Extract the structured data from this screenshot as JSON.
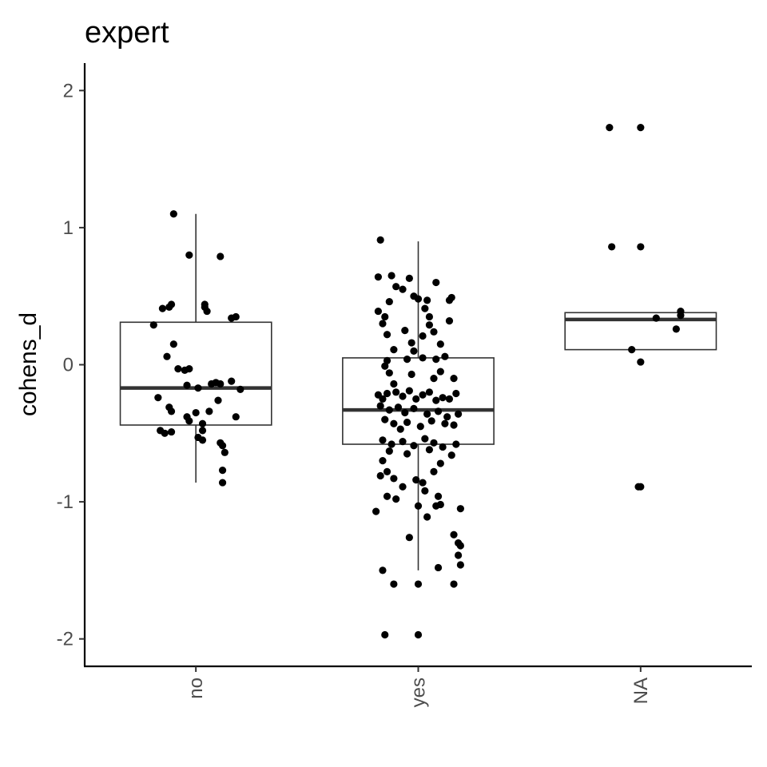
{
  "chart_data": {
    "type": "boxplot",
    "title": "expert",
    "xlabel": "",
    "ylabel": "cohens_d",
    "ylim": [
      -2.2,
      2.2
    ],
    "y_ticks": [
      -2,
      -1,
      0,
      1,
      2
    ],
    "y_tick_labels": [
      "-2",
      "-1",
      "0",
      "1",
      "2"
    ],
    "grid": false,
    "legend": "none",
    "point_color": "#000000",
    "box_color": "#333333",
    "categories": [
      "no",
      "yes",
      "NA"
    ],
    "boxes": [
      {
        "category": "no",
        "whisker_low": -0.86,
        "q1": -0.44,
        "median": -0.17,
        "q3": 0.31,
        "whisker_high": 1.1
      },
      {
        "category": "yes",
        "whisker_low": -1.5,
        "q1": -0.58,
        "median": -0.33,
        "q3": 0.05,
        "whisker_high": 0.9
      },
      {
        "category": "NA",
        "whisker_low": 0.11,
        "q1": 0.11,
        "median": 0.33,
        "q3": 0.38,
        "whisker_high": 0.38
      }
    ],
    "points": {
      "no": [
        {
          "jitter": -0.1,
          "y": 1.1
        },
        {
          "jitter": -0.03,
          "y": 0.8
        },
        {
          "jitter": 0.11,
          "y": 0.79
        },
        {
          "jitter": 0.04,
          "y": 0.44
        },
        {
          "jitter": 0.04,
          "y": 0.42
        },
        {
          "jitter": 0.05,
          "y": 0.39
        },
        {
          "jitter": -0.15,
          "y": 0.41
        },
        {
          "jitter": -0.12,
          "y": 0.42
        },
        {
          "jitter": -0.11,
          "y": 0.44
        },
        {
          "jitter": 0.16,
          "y": 0.34
        },
        {
          "jitter": 0.18,
          "y": 0.35
        },
        {
          "jitter": -0.19,
          "y": 0.29
        },
        {
          "jitter": -0.1,
          "y": 0.15
        },
        {
          "jitter": -0.13,
          "y": 0.06
        },
        {
          "jitter": -0.08,
          "y": -0.03
        },
        {
          "jitter": -0.03,
          "y": -0.03
        },
        {
          "jitter": -0.05,
          "y": -0.04
        },
        {
          "jitter": 0.07,
          "y": -0.14
        },
        {
          "jitter": 0.09,
          "y": -0.13
        },
        {
          "jitter": 0.11,
          "y": -0.14
        },
        {
          "jitter": 0.16,
          "y": -0.12
        },
        {
          "jitter": 0.2,
          "y": -0.18
        },
        {
          "jitter": -0.04,
          "y": -0.15
        },
        {
          "jitter": 0.01,
          "y": -0.17
        },
        {
          "jitter": -0.17,
          "y": -0.24
        },
        {
          "jitter": 0.1,
          "y": -0.26
        },
        {
          "jitter": -0.12,
          "y": -0.31
        },
        {
          "jitter": -0.11,
          "y": -0.34
        },
        {
          "jitter": -0.04,
          "y": -0.38
        },
        {
          "jitter": 0.0,
          "y": -0.35
        },
        {
          "jitter": 0.06,
          "y": -0.34
        },
        {
          "jitter": 0.18,
          "y": -0.38
        },
        {
          "jitter": -0.03,
          "y": -0.41
        },
        {
          "jitter": 0.03,
          "y": -0.43
        },
        {
          "jitter": -0.16,
          "y": -0.48
        },
        {
          "jitter": -0.14,
          "y": -0.5
        },
        {
          "jitter": -0.11,
          "y": -0.49
        },
        {
          "jitter": 0.03,
          "y": -0.48
        },
        {
          "jitter": 0.01,
          "y": -0.53
        },
        {
          "jitter": 0.03,
          "y": -0.55
        },
        {
          "jitter": 0.11,
          "y": -0.57
        },
        {
          "jitter": 0.12,
          "y": -0.59
        },
        {
          "jitter": 0.13,
          "y": -0.64
        },
        {
          "jitter": 0.12,
          "y": -0.77
        },
        {
          "jitter": 0.12,
          "y": -0.86
        }
      ],
      "yes": [
        {
          "jitter": -0.17,
          "y": 0.91
        },
        {
          "jitter": -0.18,
          "y": 0.64
        },
        {
          "jitter": -0.12,
          "y": 0.65
        },
        {
          "jitter": -0.1,
          "y": 0.57
        },
        {
          "jitter": -0.07,
          "y": 0.55
        },
        {
          "jitter": -0.04,
          "y": 0.63
        },
        {
          "jitter": -0.02,
          "y": 0.5
        },
        {
          "jitter": 0.08,
          "y": 0.6
        },
        {
          "jitter": 0.15,
          "y": 0.49
        },
        {
          "jitter": 0.14,
          "y": 0.47
        },
        {
          "jitter": -0.13,
          "y": 0.46
        },
        {
          "jitter": 0.0,
          "y": 0.48
        },
        {
          "jitter": 0.04,
          "y": 0.47
        },
        {
          "jitter": -0.18,
          "y": 0.39
        },
        {
          "jitter": -0.15,
          "y": 0.35
        },
        {
          "jitter": -0.16,
          "y": 0.3
        },
        {
          "jitter": -0.14,
          "y": 0.22
        },
        {
          "jitter": -0.06,
          "y": 0.25
        },
        {
          "jitter": 0.03,
          "y": 0.41
        },
        {
          "jitter": 0.05,
          "y": 0.35
        },
        {
          "jitter": 0.05,
          "y": 0.29
        },
        {
          "jitter": 0.14,
          "y": 0.32
        },
        {
          "jitter": 0.07,
          "y": 0.24
        },
        {
          "jitter": 0.02,
          "y": 0.21
        },
        {
          "jitter": -0.03,
          "y": 0.16
        },
        {
          "jitter": -0.11,
          "y": 0.11
        },
        {
          "jitter": -0.02,
          "y": 0.1
        },
        {
          "jitter": 0.1,
          "y": 0.15
        },
        {
          "jitter": 0.12,
          "y": 0.06
        },
        {
          "jitter": -0.14,
          "y": 0.03
        },
        {
          "jitter": -0.05,
          "y": 0.04
        },
        {
          "jitter": 0.02,
          "y": 0.05
        },
        {
          "jitter": 0.08,
          "y": 0.04
        },
        {
          "jitter": -0.15,
          "y": -0.01
        },
        {
          "jitter": -0.13,
          "y": -0.06
        },
        {
          "jitter": -0.03,
          "y": -0.07
        },
        {
          "jitter": 0.1,
          "y": -0.05
        },
        {
          "jitter": 0.07,
          "y": -0.1
        },
        {
          "jitter": 0.16,
          "y": -0.1
        },
        {
          "jitter": -0.11,
          "y": -0.14
        },
        {
          "jitter": -0.18,
          "y": -0.22
        },
        {
          "jitter": -0.16,
          "y": -0.25
        },
        {
          "jitter": -0.14,
          "y": -0.21
        },
        {
          "jitter": -0.1,
          "y": -0.2
        },
        {
          "jitter": -0.07,
          "y": -0.23
        },
        {
          "jitter": -0.04,
          "y": -0.19
        },
        {
          "jitter": -0.01,
          "y": -0.25
        },
        {
          "jitter": 0.02,
          "y": -0.22
        },
        {
          "jitter": 0.05,
          "y": -0.2
        },
        {
          "jitter": 0.08,
          "y": -0.26
        },
        {
          "jitter": 0.11,
          "y": -0.24
        },
        {
          "jitter": 0.14,
          "y": -0.25
        },
        {
          "jitter": 0.17,
          "y": -0.21
        },
        {
          "jitter": -0.17,
          "y": -0.3
        },
        {
          "jitter": -0.13,
          "y": -0.33
        },
        {
          "jitter": -0.09,
          "y": -0.31
        },
        {
          "jitter": -0.06,
          "y": -0.35
        },
        {
          "jitter": -0.02,
          "y": -0.32
        },
        {
          "jitter": 0.04,
          "y": -0.36
        },
        {
          "jitter": 0.09,
          "y": -0.34
        },
        {
          "jitter": 0.13,
          "y": -0.38
        },
        {
          "jitter": 0.18,
          "y": -0.36
        },
        {
          "jitter": -0.15,
          "y": -0.4
        },
        {
          "jitter": -0.11,
          "y": -0.43
        },
        {
          "jitter": -0.05,
          "y": -0.42
        },
        {
          "jitter": 0.01,
          "y": -0.45
        },
        {
          "jitter": 0.06,
          "y": -0.41
        },
        {
          "jitter": 0.12,
          "y": -0.43
        },
        {
          "jitter": 0.16,
          "y": -0.44
        },
        {
          "jitter": -0.08,
          "y": -0.47
        },
        {
          "jitter": -0.16,
          "y": -0.55
        },
        {
          "jitter": -0.12,
          "y": -0.58
        },
        {
          "jitter": -0.07,
          "y": -0.56
        },
        {
          "jitter": -0.02,
          "y": -0.59
        },
        {
          "jitter": 0.03,
          "y": -0.54
        },
        {
          "jitter": 0.07,
          "y": -0.57
        },
        {
          "jitter": 0.11,
          "y": -0.6
        },
        {
          "jitter": 0.17,
          "y": -0.58
        },
        {
          "jitter": -0.13,
          "y": -0.63
        },
        {
          "jitter": -0.05,
          "y": -0.65
        },
        {
          "jitter": 0.05,
          "y": -0.62
        },
        {
          "jitter": 0.15,
          "y": -0.66
        },
        {
          "jitter": -0.16,
          "y": -0.7
        },
        {
          "jitter": 0.1,
          "y": -0.72
        },
        {
          "jitter": -0.14,
          "y": -0.78
        },
        {
          "jitter": -0.17,
          "y": -0.81
        },
        {
          "jitter": -0.11,
          "y": -0.83
        },
        {
          "jitter": -0.01,
          "y": -0.84
        },
        {
          "jitter": 0.02,
          "y": -0.86
        },
        {
          "jitter": 0.07,
          "y": -0.78
        },
        {
          "jitter": -0.07,
          "y": -0.89
        },
        {
          "jitter": 0.03,
          "y": -0.92
        },
        {
          "jitter": -0.14,
          "y": -0.96
        },
        {
          "jitter": -0.1,
          "y": -0.98
        },
        {
          "jitter": 0.09,
          "y": -0.96
        },
        {
          "jitter": 0.0,
          "y": -1.03
        },
        {
          "jitter": 0.08,
          "y": -1.03
        },
        {
          "jitter": 0.1,
          "y": -1.02
        },
        {
          "jitter": 0.19,
          "y": -1.05
        },
        {
          "jitter": -0.19,
          "y": -1.07
        },
        {
          "jitter": 0.04,
          "y": -1.11
        },
        {
          "jitter": -0.04,
          "y": -1.26
        },
        {
          "jitter": 0.16,
          "y": -1.24
        },
        {
          "jitter": 0.18,
          "y": -1.3
        },
        {
          "jitter": 0.19,
          "y": -1.32
        },
        {
          "jitter": 0.18,
          "y": -1.39
        },
        {
          "jitter": 0.19,
          "y": -1.46
        },
        {
          "jitter": 0.09,
          "y": -1.48
        },
        {
          "jitter": -0.16,
          "y": -1.5
        },
        {
          "jitter": -0.11,
          "y": -1.6
        },
        {
          "jitter": 0.0,
          "y": -1.6
        },
        {
          "jitter": 0.16,
          "y": -1.6
        },
        {
          "jitter": -0.15,
          "y": -1.97
        },
        {
          "jitter": 0.0,
          "y": -1.97
        }
      ],
      "NA": [
        {
          "jitter": -0.14,
          "y": 1.73
        },
        {
          "jitter": 0.0,
          "y": 1.73
        },
        {
          "jitter": -0.13,
          "y": 0.86
        },
        {
          "jitter": 0.0,
          "y": 0.86
        },
        {
          "jitter": 0.18,
          "y": 0.39
        },
        {
          "jitter": 0.18,
          "y": 0.36
        },
        {
          "jitter": 0.07,
          "y": 0.34
        },
        {
          "jitter": 0.16,
          "y": 0.26
        },
        {
          "jitter": -0.04,
          "y": 0.11
        },
        {
          "jitter": 0.0,
          "y": 0.02
        },
        {
          "jitter": -0.01,
          "y": -0.89
        },
        {
          "jitter": 0.0,
          "y": -0.89
        }
      ]
    }
  }
}
